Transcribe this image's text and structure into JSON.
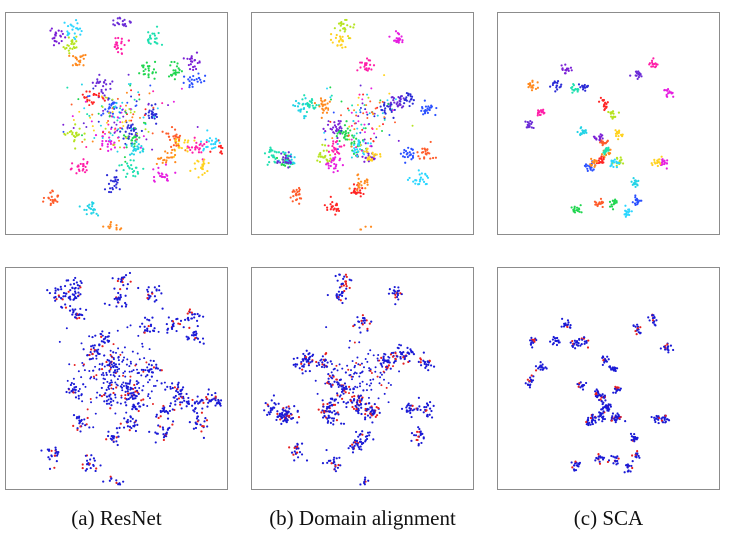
{
  "figure": {
    "captions": [
      "(a) ResNet",
      "(b) Domain alignment",
      "(c) SCA"
    ]
  },
  "colors": {
    "class_palette": [
      "#ff8a1f",
      "#1fd64f",
      "#2b2bd6",
      "#ff1fa8",
      "#22d3e6",
      "#2a50ff",
      "#ff2424",
      "#b6e320",
      "#7a1fd6",
      "#e61fe0",
      "#1fe0b0",
      "#ff5c2b",
      "#6a2bd6",
      "#2bd6ff",
      "#ffd21f"
    ],
    "source": "#1a1ad6",
    "target": "#e61f1f"
  }
}
